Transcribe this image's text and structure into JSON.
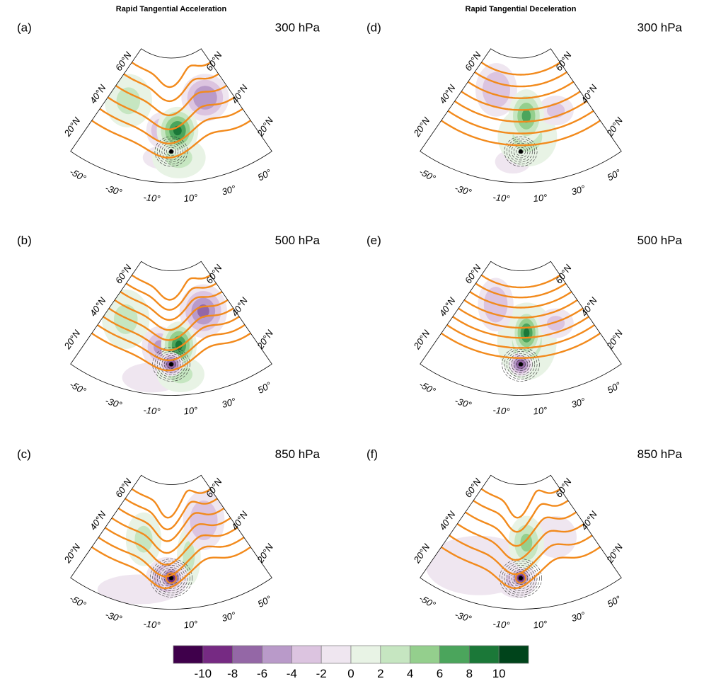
{
  "chart_data": {
    "type": "heatmap",
    "projection": "polar stereographic sector",
    "column_titles": [
      "Rapid Tangential Acceleration",
      "Rapid Tangential Deceleration"
    ],
    "panels": [
      {
        "id": "a",
        "label": "(a)",
        "level": "300 hPa",
        "column": 0,
        "row": 0,
        "shading": [
          {
            "lon": -42,
            "lat": 45,
            "value": 3,
            "sx": 8,
            "sy": 9
          },
          {
            "lon": -8,
            "lat": 35,
            "value": -4,
            "sx": 5,
            "sy": 6
          },
          {
            "lon": 5,
            "lat": 35,
            "value": 8,
            "sx": 7,
            "sy": 8
          },
          {
            "lon": 5,
            "lat": 22,
            "value": 3,
            "sx": 9,
            "sy": 7
          },
          {
            "lon": 35,
            "lat": 48,
            "value": -6,
            "sx": 8,
            "sy": 8
          },
          {
            "lon": -5,
            "lat": 22,
            "value": -2,
            "sx": 7,
            "sy": 4
          }
        ],
        "contours_orange_count": 6,
        "orange_shape": "trough",
        "vortex_strength": "weak"
      },
      {
        "id": "b",
        "label": "(b)",
        "level": "500 hPa",
        "column": 0,
        "row": 1,
        "shading": [
          {
            "lon": -42,
            "lat": 42,
            "value": 3,
            "sx": 8,
            "sy": 10
          },
          {
            "lon": -9,
            "lat": 33,
            "value": -5,
            "sx": 6,
            "sy": 7
          },
          {
            "lon": 0,
            "lat": 25,
            "value": -9,
            "sx": 4,
            "sy": 4
          },
          {
            "lon": 6,
            "lat": 34,
            "value": 8,
            "sx": 6,
            "sy": 8
          },
          {
            "lon": 6,
            "lat": 20,
            "value": 3,
            "sx": 8,
            "sy": 6
          },
          {
            "lon": 33,
            "lat": 48,
            "value": -7,
            "sx": 8,
            "sy": 9
          },
          {
            "lon": -12,
            "lat": 18,
            "value": -2,
            "sx": 10,
            "sy": 5
          }
        ],
        "contours_orange_count": 8,
        "orange_shape": "trough",
        "vortex_strength": "medium"
      },
      {
        "id": "c",
        "label": "(c)",
        "level": "850 hPa",
        "column": 0,
        "row": 2,
        "shading": [
          {
            "lon": -25,
            "lat": 42,
            "value": 2,
            "sx": 6,
            "sy": 9
          },
          {
            "lon": 0,
            "lat": 25,
            "value": -10,
            "sx": 4,
            "sy": 4
          },
          {
            "lon": -3,
            "lat": 25,
            "value": -5,
            "sx": 7,
            "sy": 7
          },
          {
            "lon": 14,
            "lat": 35,
            "value": 2,
            "sx": 4,
            "sy": 10
          },
          {
            "lon": 35,
            "lat": 50,
            "value": -4,
            "sx": 7,
            "sy": 10
          },
          {
            "lon": -20,
            "lat": 18,
            "value": -1,
            "sx": 14,
            "sy": 5
          }
        ],
        "contours_orange_count": 7,
        "orange_shape": "ridge-cyclone",
        "vortex_strength": "strong"
      },
      {
        "id": "d",
        "label": "(d)",
        "level": "300 hPa",
        "column": 1,
        "row": 0,
        "shading": [
          {
            "lon": -28,
            "lat": 53,
            "value": -4,
            "sx": 7,
            "sy": 9
          },
          {
            "lon": 5,
            "lat": 42,
            "value": 7,
            "sx": 6,
            "sy": 9
          },
          {
            "lon": 5,
            "lat": 32,
            "value": 3,
            "sx": 10,
            "sy": 10
          },
          {
            "lon": 32,
            "lat": 42,
            "value": -3,
            "sx": 6,
            "sy": 5
          },
          {
            "lon": -5,
            "lat": 20,
            "value": -1,
            "sx": 6,
            "sy": 4
          }
        ],
        "contours_orange_count": 7,
        "orange_shape": "zonal",
        "vortex_strength": "weak"
      },
      {
        "id": "e",
        "label": "(e)",
        "level": "500 hPa",
        "column": 1,
        "row": 1,
        "shading": [
          {
            "lon": -28,
            "lat": 52,
            "value": -4,
            "sx": 6,
            "sy": 9
          },
          {
            "lon": 5,
            "lat": 40,
            "value": 9,
            "sx": 5,
            "sy": 8
          },
          {
            "lon": 5,
            "lat": 36,
            "value": 3,
            "sx": 10,
            "sy": 13
          },
          {
            "lon": 0,
            "lat": 25,
            "value": -8,
            "sx": 4,
            "sy": 4
          },
          {
            "lon": 32,
            "lat": 42,
            "value": -3,
            "sx": 6,
            "sy": 5
          }
        ],
        "contours_orange_count": 8,
        "orange_shape": "zonal",
        "vortex_strength": "medium"
      },
      {
        "id": "f",
        "label": "(f)",
        "level": "850 hPa",
        "column": 1,
        "row": 2,
        "shading": [
          {
            "lon": 5,
            "lat": 42,
            "value": 4,
            "sx": 6,
            "sy": 9
          },
          {
            "lon": 0,
            "lat": 25,
            "value": -10,
            "sx": 3.5,
            "sy": 3.5
          },
          {
            "lon": -3,
            "lat": 24,
            "value": -3,
            "sx": 7,
            "sy": 6
          },
          {
            "lon": -30,
            "lat": 28,
            "value": -1,
            "sx": 18,
            "sy": 10
          },
          {
            "lon": 32,
            "lat": 42,
            "value": -1,
            "sx": 7,
            "sy": 7
          }
        ],
        "contours_orange_count": 6,
        "orange_shape": "ridge-cyclone",
        "vortex_strength": "strong"
      }
    ],
    "latitude_labels": [
      "20°N",
      "40°N",
      "60°N"
    ],
    "longitude_labels": [
      "-50°",
      "-30°",
      "-10°",
      "10°",
      "30°",
      "50°"
    ],
    "colorbar": {
      "levels": [
        -12,
        -10,
        -8,
        -6,
        -4,
        -2,
        0,
        2,
        4,
        6,
        8,
        10,
        12
      ],
      "tick_labels": [
        "-10",
        "-8",
        "-6",
        "-4",
        "-2",
        "0",
        "2",
        "4",
        "6",
        "8",
        "10"
      ],
      "colors": [
        "#3f004b",
        "#762a83",
        "#9467a6",
        "#b99ac9",
        "#dcc4e0",
        "#efe6f0",
        "#e8f3e5",
        "#c6e6c1",
        "#94cf8d",
        "#4ba55c",
        "#1b7838",
        "#00441b"
      ]
    },
    "contour_color_streamlines": "#f28a1c",
    "contour_color_anomaly": "#333333"
  }
}
